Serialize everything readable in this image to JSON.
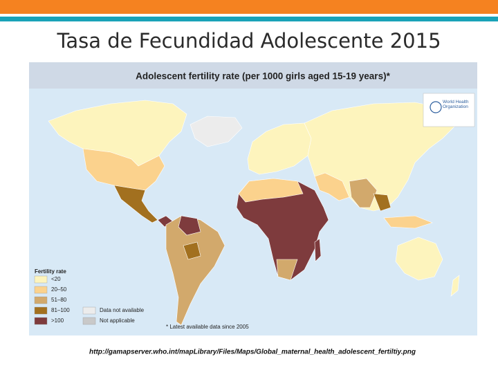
{
  "slide_title": "Tasa de Fecundidad Adolescente 2015",
  "map": {
    "title": "Adolescent fertility rate (per 1000 girls aged 15-19 years)*",
    "logo": "World Health Organization",
    "legend": {
      "title": "Fertility rate",
      "items": [
        {
          "label": "<20",
          "color": "#fdf4bd"
        },
        {
          "label": "20–50",
          "color": "#fbd28d"
        },
        {
          "label": "51–80",
          "color": "#d2a96c"
        },
        {
          "label": "81–100",
          "color": "#a2701f"
        },
        {
          "label": ">100",
          "color": "#7e3b3d"
        },
        {
          "label": "Data not available",
          "color": "#ececec"
        },
        {
          "label": "Not applicable",
          "color": "#c9c9c9"
        }
      ]
    },
    "note": "* Latest available data since 2005"
  },
  "source_url": "http://gamapserver.who.int/mapLibrary/Files/Maps/Global_maternal_health_adolescent_fertiltiy.png"
}
